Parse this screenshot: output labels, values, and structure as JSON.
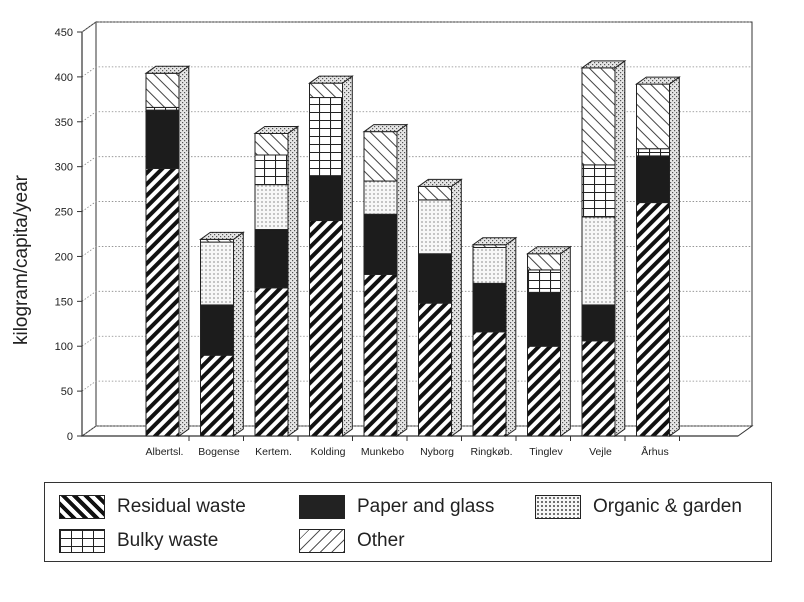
{
  "chart_data": {
    "type": "bar",
    "stacked": true,
    "style": "3d",
    "ylabel": "kilogram/capita/year",
    "xlabel": "",
    "ylim": [
      0,
      450
    ],
    "yticks": [
      "0",
      "50",
      "100",
      "150",
      "200",
      "250",
      "300",
      "350",
      "400",
      "450"
    ],
    "grid": true,
    "legend_position": "bottom",
    "categories": [
      "Albertsl.",
      "Bogense",
      "Kertem.",
      "Kolding",
      "Munkebo",
      "Nyborg",
      "Ringkøb.",
      "Tinglev",
      "Vejle",
      "Århus"
    ],
    "series": [
      {
        "name": "Residual waste",
        "values": [
          298,
          90,
          165,
          240,
          180,
          148,
          116,
          100,
          106,
          260
        ]
      },
      {
        "name": "Paper and glass",
        "values": [
          65,
          56,
          65,
          50,
          67,
          55,
          54,
          60,
          40,
          52
        ]
      },
      {
        "name": "Organic & garden",
        "values": [
          0,
          70,
          50,
          0,
          37,
          60,
          40,
          0,
          98,
          0
        ]
      },
      {
        "name": "Bulky waste",
        "values": [
          3,
          0,
          33,
          87,
          0,
          0,
          0,
          25,
          58,
          8
        ]
      },
      {
        "name": "Other",
        "values": [
          38,
          3,
          24,
          16,
          55,
          15,
          3,
          18,
          108,
          72
        ]
      }
    ]
  },
  "legend": {
    "residual": "Residual waste",
    "paper": "Paper and glass",
    "organic": "Organic & garden",
    "bulky": "Bulky waste",
    "other": "Other"
  }
}
